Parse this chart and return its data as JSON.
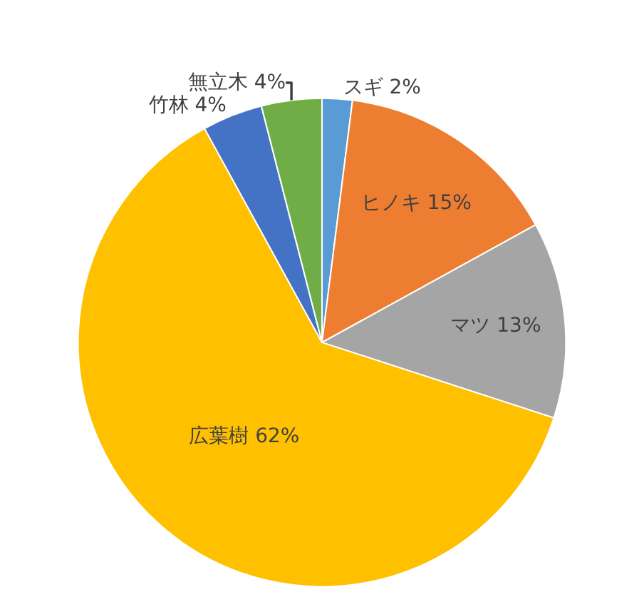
{
  "chart_data": {
    "type": "pie",
    "categories": [
      "スギ",
      "ヒノキ",
      "マツ",
      "広葉樹",
      "竹林",
      "無立木"
    ],
    "values": [
      2,
      15,
      13,
      62,
      4,
      4
    ],
    "value_labels": [
      "2%",
      "15%",
      "13%",
      "62%",
      "4%",
      "4%"
    ],
    "colors": [
      "#5b9bd5",
      "#ed7d31",
      "#a5a5a5",
      "#ffc000",
      "#4472c4",
      "#70ad47"
    ],
    "legend": false
  }
}
